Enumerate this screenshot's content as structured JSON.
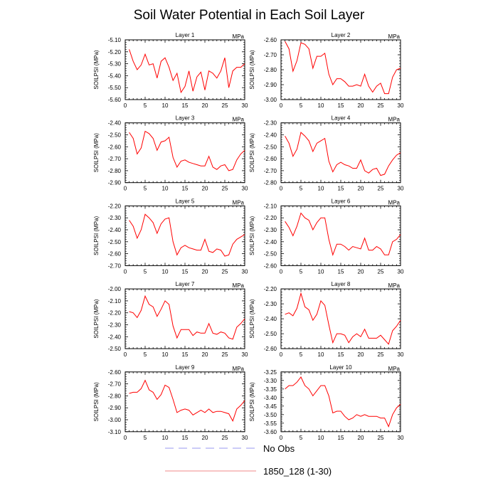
{
  "figure": {
    "title": "Soil Water Potential in Each Soil Layer",
    "legend": {
      "placement": "bottom-center",
      "entries": [
        {
          "label": "No Obs",
          "style": "dashed",
          "color": "#9a9af0"
        },
        {
          "label": "1850_128 (1-30)",
          "style": "solid",
          "color": "#f08a8a"
        }
      ]
    },
    "colors": {
      "series": "#ff0000",
      "axis": "#000000"
    }
  },
  "chart_data": [
    {
      "type": "line",
      "title": "Layer 1",
      "units": "MPa",
      "ylabel": "SOILPSI  (MPa)",
      "xlim": [
        0,
        30
      ],
      "ylim": [
        -5.6,
        -5.1
      ],
      "xticks": [
        "0",
        "5",
        "10",
        "15",
        "20",
        "25",
        "30"
      ],
      "yticks": [
        "-5.10",
        "-5.20",
        "-5.30",
        "-5.40",
        "-5.50",
        "-5.60"
      ],
      "series": [
        {
          "name": "1850_128 (1-30)",
          "x": [
            1,
            2,
            3,
            4,
            5,
            6,
            7,
            8,
            9,
            10,
            11,
            12,
            13,
            14,
            15,
            16,
            17,
            18,
            19,
            20,
            21,
            22,
            23,
            24,
            25,
            26,
            27,
            28,
            29,
            30
          ],
          "values": [
            -5.18,
            -5.28,
            -5.35,
            -5.31,
            -5.22,
            -5.31,
            -5.3,
            -5.42,
            -5.28,
            -5.25,
            -5.33,
            -5.44,
            -5.38,
            -5.54,
            -5.49,
            -5.36,
            -5.53,
            -5.41,
            -5.37,
            -5.52,
            -5.36,
            -5.38,
            -5.42,
            -5.36,
            -5.25,
            -5.5,
            -5.36,
            -5.33,
            -5.33,
            -5.3
          ]
        }
      ]
    },
    {
      "type": "line",
      "title": "Layer 2",
      "units": "MPa",
      "ylabel": "SOILPSI  (MPa)",
      "xlim": [
        0,
        30
      ],
      "ylim": [
        -3.0,
        -2.6
      ],
      "xticks": [
        "0",
        "5",
        "10",
        "15",
        "20",
        "25",
        "30"
      ],
      "yticks": [
        "-2.60",
        "-2.70",
        "-2.80",
        "-2.90",
        "-3.00"
      ],
      "series": [
        {
          "name": "1850_128 (1-30)",
          "x": [
            1,
            2,
            3,
            4,
            5,
            6,
            7,
            8,
            9,
            10,
            11,
            12,
            13,
            14,
            15,
            16,
            17,
            18,
            19,
            20,
            21,
            22,
            23,
            24,
            25,
            26,
            27,
            28,
            29,
            30
          ],
          "values": [
            -2.61,
            -2.66,
            -2.81,
            -2.74,
            -2.62,
            -2.63,
            -2.66,
            -2.79,
            -2.71,
            -2.71,
            -2.69,
            -2.83,
            -2.9,
            -2.86,
            -2.86,
            -2.88,
            -2.91,
            -2.91,
            -2.9,
            -2.91,
            -2.83,
            -2.91,
            -2.95,
            -2.91,
            -2.89,
            -2.96,
            -2.96,
            -2.85,
            -2.8,
            -2.79
          ]
        }
      ]
    },
    {
      "type": "line",
      "title": "Layer 3",
      "units": "MPa",
      "ylabel": "SOILPSI  (MPa)",
      "xlim": [
        0,
        30
      ],
      "ylim": [
        -2.9,
        -2.4
      ],
      "xticks": [
        "0",
        "5",
        "10",
        "15",
        "20",
        "25",
        "30"
      ],
      "yticks": [
        "-2.40",
        "-2.50",
        "-2.60",
        "-2.70",
        "-2.80",
        "-2.90"
      ],
      "series": [
        {
          "name": "1850_128 (1-30)",
          "x": [
            1,
            2,
            3,
            4,
            5,
            6,
            7,
            8,
            9,
            10,
            11,
            12,
            13,
            14,
            15,
            16,
            17,
            18,
            19,
            20,
            21,
            22,
            23,
            24,
            25,
            26,
            27,
            28,
            29,
            30
          ],
          "values": [
            -2.48,
            -2.53,
            -2.66,
            -2.61,
            -2.47,
            -2.49,
            -2.53,
            -2.63,
            -2.56,
            -2.55,
            -2.52,
            -2.69,
            -2.77,
            -2.72,
            -2.71,
            -2.73,
            -2.74,
            -2.75,
            -2.76,
            -2.76,
            -2.68,
            -2.77,
            -2.79,
            -2.76,
            -2.75,
            -2.8,
            -2.79,
            -2.71,
            -2.66,
            -2.63
          ]
        }
      ]
    },
    {
      "type": "line",
      "title": "Layer 4",
      "units": "MPa",
      "ylabel": "SOILPSI  (MPa)",
      "xlim": [
        0,
        30
      ],
      "ylim": [
        -2.8,
        -2.3
      ],
      "xticks": [
        "0",
        "5",
        "10",
        "15",
        "20",
        "25",
        "30"
      ],
      "yticks": [
        "-2.30",
        "-2.40",
        "-2.50",
        "-2.60",
        "-2.70",
        "-2.80"
      ],
      "series": [
        {
          "name": "1850_128 (1-30)",
          "x": [
            1,
            2,
            3,
            4,
            5,
            6,
            7,
            8,
            9,
            10,
            11,
            12,
            13,
            14,
            15,
            16,
            17,
            18,
            19,
            20,
            21,
            22,
            23,
            24,
            25,
            26,
            27,
            28,
            29,
            30
          ],
          "values": [
            -2.41,
            -2.47,
            -2.58,
            -2.52,
            -2.38,
            -2.41,
            -2.45,
            -2.54,
            -2.47,
            -2.45,
            -2.43,
            -2.62,
            -2.71,
            -2.65,
            -2.63,
            -2.65,
            -2.66,
            -2.68,
            -2.68,
            -2.61,
            -2.7,
            -2.72,
            -2.69,
            -2.68,
            -2.74,
            -2.73,
            -2.66,
            -2.61,
            -2.57,
            -2.55
          ]
        }
      ]
    },
    {
      "type": "line",
      "title": "Layer 5",
      "units": "MPa",
      "ylabel": "SOILPSI  (MPa)",
      "xlim": [
        0,
        30
      ],
      "ylim": [
        -2.7,
        -2.2
      ],
      "xticks": [
        "0",
        "5",
        "10",
        "15",
        "20",
        "25",
        "30"
      ],
      "yticks": [
        "-2.20",
        "-2.30",
        "-2.40",
        "-2.50",
        "-2.60",
        "-2.70"
      ],
      "series": [
        {
          "name": "1850_128 (1-30)",
          "x": [
            1,
            2,
            3,
            4,
            5,
            6,
            7,
            8,
            9,
            10,
            11,
            12,
            13,
            14,
            15,
            16,
            17,
            18,
            19,
            20,
            21,
            22,
            23,
            24,
            25,
            26,
            27,
            28,
            29,
            30
          ],
          "values": [
            -2.32,
            -2.37,
            -2.47,
            -2.4,
            -2.27,
            -2.3,
            -2.34,
            -2.43,
            -2.35,
            -2.31,
            -2.3,
            -2.5,
            -2.61,
            -2.55,
            -2.53,
            -2.55,
            -2.56,
            -2.57,
            -2.57,
            -2.48,
            -2.58,
            -2.59,
            -2.56,
            -2.57,
            -2.62,
            -2.61,
            -2.52,
            -2.48,
            -2.46,
            -2.44
          ]
        }
      ]
    },
    {
      "type": "line",
      "title": "Layer 6",
      "units": "MPa",
      "ylabel": "SOILPSI  (MPa)",
      "xlim": [
        0,
        30
      ],
      "ylim": [
        -2.6,
        -2.1
      ],
      "xticks": [
        "0",
        "5",
        "10",
        "15",
        "20",
        "25",
        "30"
      ],
      "yticks": [
        "-2.10",
        "-2.20",
        "-2.30",
        "-2.40",
        "-2.50",
        "-2.60"
      ],
      "series": [
        {
          "name": "1850_128 (1-30)",
          "x": [
            1,
            2,
            3,
            4,
            5,
            6,
            7,
            8,
            9,
            10,
            11,
            12,
            13,
            14,
            15,
            16,
            17,
            18,
            19,
            20,
            21,
            22,
            23,
            24,
            25,
            26,
            27,
            28,
            29,
            30
          ],
          "values": [
            -2.23,
            -2.28,
            -2.35,
            -2.27,
            -2.16,
            -2.2,
            -2.22,
            -2.3,
            -2.24,
            -2.2,
            -2.2,
            -2.38,
            -2.51,
            -2.42,
            -2.42,
            -2.44,
            -2.47,
            -2.44,
            -2.45,
            -2.46,
            -2.37,
            -2.47,
            -2.47,
            -2.44,
            -2.46,
            -2.51,
            -2.51,
            -2.4,
            -2.38,
            -2.34
          ]
        }
      ]
    },
    {
      "type": "line",
      "title": "Layer 7",
      "units": "MPa",
      "ylabel": "SOILPSI  (MPa)",
      "xlim": [
        0,
        30
      ],
      "ylim": [
        -2.5,
        -2.0
      ],
      "xticks": [
        "0",
        "5",
        "10",
        "15",
        "20",
        "25",
        "30"
      ],
      "yticks": [
        "-2.00",
        "-2.10",
        "-2.20",
        "-2.30",
        "-2.40",
        "-2.50"
      ],
      "series": [
        {
          "name": "1850_128 (1-30)",
          "x": [
            1,
            2,
            3,
            4,
            5,
            6,
            7,
            8,
            9,
            10,
            11,
            12,
            13,
            14,
            15,
            16,
            17,
            18,
            19,
            20,
            21,
            22,
            23,
            24,
            25,
            26,
            27,
            28,
            29,
            30
          ],
          "values": [
            -2.19,
            -2.2,
            -2.24,
            -2.18,
            -2.06,
            -2.13,
            -2.15,
            -2.23,
            -2.17,
            -2.1,
            -2.13,
            -2.31,
            -2.41,
            -2.34,
            -2.34,
            -2.34,
            -2.39,
            -2.36,
            -2.37,
            -2.37,
            -2.29,
            -2.37,
            -2.38,
            -2.36,
            -2.37,
            -2.41,
            -2.42,
            -2.32,
            -2.29,
            -2.25
          ]
        }
      ]
    },
    {
      "type": "line",
      "title": "Layer 8",
      "units": "MPa",
      "ylabel": "SOILPSI  (MPa)",
      "xlim": [
        0,
        30
      ],
      "ylim": [
        -2.6,
        -2.2
      ],
      "xticks": [
        "0",
        "5",
        "10",
        "15",
        "20",
        "25",
        "30"
      ],
      "yticks": [
        "-2.20",
        "-2.30",
        "-2.40",
        "-2.50",
        "-2.60"
      ],
      "series": [
        {
          "name": "1850_128 (1-30)",
          "x": [
            1,
            2,
            3,
            4,
            5,
            6,
            7,
            8,
            9,
            10,
            11,
            12,
            13,
            14,
            15,
            16,
            17,
            18,
            19,
            20,
            21,
            22,
            23,
            24,
            25,
            26,
            27,
            28,
            29,
            30
          ],
          "values": [
            -2.37,
            -2.36,
            -2.38,
            -2.33,
            -2.23,
            -2.32,
            -2.34,
            -2.41,
            -2.37,
            -2.28,
            -2.31,
            -2.44,
            -2.56,
            -2.5,
            -2.5,
            -2.51,
            -2.56,
            -2.52,
            -2.5,
            -2.52,
            -2.47,
            -2.53,
            -2.53,
            -2.53,
            -2.51,
            -2.54,
            -2.57,
            -2.48,
            -2.45,
            -2.41
          ]
        }
      ]
    },
    {
      "type": "line",
      "title": "Layer 9",
      "units": "MPa",
      "ylabel": "SOILPSI  (MPa)",
      "xlim": [
        0,
        30
      ],
      "ylim": [
        -3.1,
        -2.6
      ],
      "xticks": [
        "0",
        "5",
        "10",
        "15",
        "20",
        "25",
        "30"
      ],
      "yticks": [
        "-2.60",
        "-2.70",
        "-2.80",
        "-2.90",
        "-3.00",
        "-3.10"
      ],
      "series": [
        {
          "name": "1850_128 (1-30)",
          "x": [
            1,
            2,
            3,
            4,
            5,
            6,
            7,
            8,
            9,
            10,
            11,
            12,
            13,
            14,
            15,
            16,
            17,
            18,
            19,
            20,
            21,
            22,
            23,
            24,
            25,
            26,
            27,
            28,
            29,
            30
          ],
          "values": [
            -2.78,
            -2.77,
            -2.77,
            -2.74,
            -2.67,
            -2.75,
            -2.77,
            -2.83,
            -2.79,
            -2.71,
            -2.73,
            -2.83,
            -2.94,
            -2.92,
            -2.91,
            -2.92,
            -2.96,
            -2.94,
            -2.92,
            -2.94,
            -2.91,
            -2.94,
            -2.93,
            -2.93,
            -2.94,
            -2.95,
            -3.01,
            -2.91,
            -2.88,
            -2.84
          ]
        }
      ]
    },
    {
      "type": "line",
      "title": "Layer 10",
      "units": "MPa",
      "ylabel": "SOILPSI  (MPa)",
      "xlim": [
        0,
        30
      ],
      "ylim": [
        -3.6,
        -3.25
      ],
      "xticks": [
        "0",
        "5",
        "10",
        "15",
        "20",
        "25",
        "30"
      ],
      "yticks": [
        "-3.25",
        "-3.30",
        "-3.35",
        "-3.40",
        "-3.45",
        "-3.50",
        "-3.55",
        "-3.60"
      ],
      "series": [
        {
          "name": "1850_128 (1-30)",
          "x": [
            1,
            2,
            3,
            4,
            5,
            6,
            7,
            8,
            9,
            10,
            11,
            12,
            13,
            14,
            15,
            16,
            17,
            18,
            19,
            20,
            21,
            22,
            23,
            24,
            25,
            26,
            27,
            28,
            29,
            30
          ],
          "values": [
            -3.35,
            -3.33,
            -3.33,
            -3.31,
            -3.28,
            -3.33,
            -3.35,
            -3.39,
            -3.36,
            -3.33,
            -3.33,
            -3.39,
            -3.49,
            -3.48,
            -3.48,
            -3.51,
            -3.53,
            -3.52,
            -3.5,
            -3.51,
            -3.5,
            -3.51,
            -3.51,
            -3.51,
            -3.52,
            -3.52,
            -3.57,
            -3.5,
            -3.46,
            -3.44
          ]
        }
      ]
    }
  ]
}
